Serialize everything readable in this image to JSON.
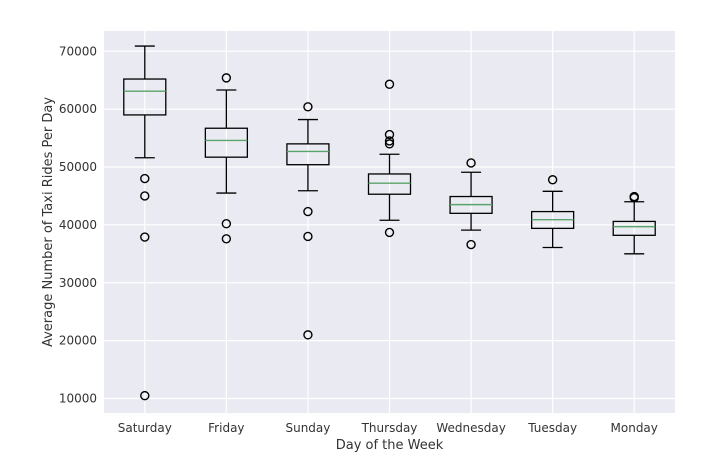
{
  "chart_data": {
    "type": "boxplot",
    "title": "",
    "xlabel": "Day of the Week",
    "ylabel": "Average Number of Taxi Rides Per Day",
    "ylim": [
      7500,
      73500
    ],
    "yticks": [
      10000,
      20000,
      30000,
      40000,
      50000,
      60000,
      70000
    ],
    "grid": true,
    "colors": {
      "plot_background": "#eaeaf2",
      "grid": "#ffffff",
      "box": "#000000",
      "median": "#5aa36a"
    },
    "categories": [
      "Saturday",
      "Friday",
      "Sunday",
      "Thursday",
      "Wednesday",
      "Tuesday",
      "Monday"
    ],
    "boxes": [
      {
        "category": "Saturday",
        "whisker_low": 51600,
        "q1": 59000,
        "median": 63100,
        "q3": 65200,
        "whisker_high": 70900,
        "outliers": [
          48000,
          45000,
          37900,
          10500
        ]
      },
      {
        "category": "Friday",
        "whisker_low": 45500,
        "q1": 51700,
        "median": 54600,
        "q3": 56700,
        "whisker_high": 63300,
        "outliers": [
          65400,
          40200,
          37600
        ]
      },
      {
        "category": "Sunday",
        "whisker_low": 45900,
        "q1": 50400,
        "median": 52700,
        "q3": 54000,
        "whisker_high": 58200,
        "outliers": [
          60400,
          42300,
          38000,
          21000
        ]
      },
      {
        "category": "Thursday",
        "whisker_low": 40800,
        "q1": 45300,
        "median": 47200,
        "q3": 48800,
        "whisker_high": 52200,
        "outliers": [
          64300,
          55600,
          54500,
          54000,
          38700
        ]
      },
      {
        "category": "Wednesday",
        "whisker_low": 39100,
        "q1": 42000,
        "median": 43500,
        "q3": 44900,
        "whisker_high": 49100,
        "outliers": [
          50700,
          36600
        ]
      },
      {
        "category": "Tuesday",
        "whisker_low": 36100,
        "q1": 39400,
        "median": 40900,
        "q3": 42300,
        "whisker_high": 45800,
        "outliers": [
          47800
        ]
      },
      {
        "category": "Monday",
        "whisker_low": 35000,
        "q1": 38200,
        "median": 39700,
        "q3": 40600,
        "whisker_high": 44000,
        "outliers": [
          44900,
          44700
        ]
      }
    ]
  }
}
